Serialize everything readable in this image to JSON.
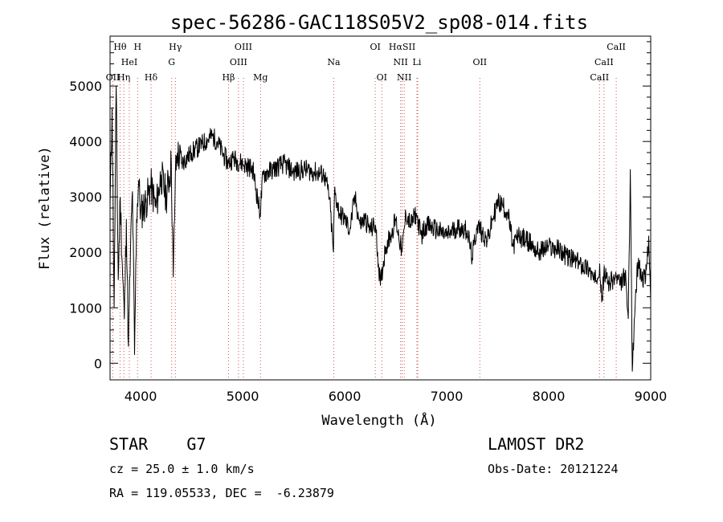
{
  "chart_data": {
    "type": "line",
    "title": "spec-56286-GAC118S05V2_sp08-014.fits",
    "xlabel": "Wavelength (Å)",
    "ylabel": "Flux (relative)",
    "xlim": [
      3700,
      9000
    ],
    "ylim": [
      -300,
      5900
    ],
    "xticks": [
      4000,
      5000,
      6000,
      7000,
      8000,
      9000
    ],
    "yticks": [
      0,
      1000,
      2000,
      3000,
      4000,
      5000
    ],
    "grid": false,
    "series": [
      {
        "x": [
          3700,
          3720,
          3740,
          3760,
          3780,
          3800,
          3820,
          3840,
          3860,
          3880,
          3900,
          3920,
          3940,
          3960,
          3980,
          4000,
          4050,
          4100,
          4150,
          4200,
          4250,
          4300,
          4320,
          4340,
          4360,
          4400,
          4500,
          4600,
          4700,
          4750,
          4800,
          4860,
          4900,
          5000,
          5100,
          5170,
          5200,
          5300,
          5400,
          5500,
          5600,
          5700,
          5800,
          5850,
          5890,
          5900,
          5950,
          6000,
          6050,
          6100,
          6150,
          6200,
          6250,
          6300,
          6350,
          6400,
          6450,
          6500,
          6563,
          6600,
          6650,
          6700,
          6750,
          6800,
          6900,
          7000,
          7100,
          7200,
          7250,
          7300,
          7400,
          7450,
          7500,
          7550,
          7600,
          7650,
          7700,
          7800,
          7900,
          8000,
          8100,
          8200,
          8300,
          8400,
          8450,
          8500,
          8520,
          8540,
          8600,
          8662,
          8700,
          8750,
          8780,
          8800,
          8820,
          8850,
          8880,
          8900,
          8950,
          8980,
          9000
        ],
        "y": [
          2800,
          4600,
          1000,
          5000,
          1500,
          3000,
          1800,
          800,
          2600,
          300,
          2000,
          3100,
          150,
          2600,
          3300,
          2700,
          2900,
          3200,
          2800,
          3400,
          3000,
          3600,
          1550,
          3400,
          3800,
          3600,
          3800,
          3950,
          4100,
          4000,
          3800,
          3600,
          3700,
          3600,
          3500,
          2700,
          3400,
          3500,
          3600,
          3450,
          3500,
          3450,
          3400,
          3000,
          2000,
          3100,
          2700,
          2600,
          2400,
          3000,
          2500,
          2600,
          2400,
          2500,
          1400,
          2100,
          2300,
          2600,
          2000,
          2700,
          2500,
          2700,
          2300,
          2500,
          2400,
          2300,
          2450,
          2400,
          1900,
          2500,
          2200,
          2600,
          2900,
          2850,
          2700,
          2100,
          2300,
          2200,
          2000,
          2100,
          2050,
          1900,
          1800,
          1700,
          1450,
          1800,
          1100,
          1600,
          1450,
          1550,
          1400,
          1600,
          800,
          3500,
          -150,
          1200,
          1900,
          1600,
          1500,
          2300,
          1100
        ]
      }
    ],
    "line_labels": [
      {
        "text": "Hθ",
        "wave": 3798,
        "row": 0,
        "color": "#000000"
      },
      {
        "text": "H",
        "wave": 3970,
        "row": 0,
        "color": "#000000"
      },
      {
        "text": "Hγ",
        "wave": 4340,
        "row": 0,
        "color": "#000000"
      },
      {
        "text": "OIII",
        "wave": 5007,
        "row": 0,
        "color": "#000000"
      },
      {
        "text": "OI",
        "wave": 6300,
        "row": 0,
        "color": "#000000"
      },
      {
        "text": "HαSII",
        "wave": 6563,
        "row": 0,
        "color": "#000000"
      },
      {
        "text": "CaII",
        "wave": 8662,
        "row": 0,
        "color": "#000000"
      },
      {
        "text": "HeI",
        "wave": 3889,
        "row": 1,
        "color": "#000000"
      },
      {
        "text": "G",
        "wave": 4304,
        "row": 1,
        "color": "#000000"
      },
      {
        "text": "OIII",
        "wave": 4959,
        "row": 1,
        "color": "#000000"
      },
      {
        "text": "Na",
        "wave": 5893,
        "row": 1,
        "color": "#000000"
      },
      {
        "text": "NII",
        "wave": 6548,
        "row": 1,
        "color": "#000000"
      },
      {
        "text": "Li",
        "wave": 6708,
        "row": 1,
        "color": "#000000"
      },
      {
        "text": "OII",
        "wave": 7325,
        "row": 1,
        "color": "#000000"
      },
      {
        "text": "CaII",
        "wave": 8542,
        "row": 1,
        "color": "#000000"
      },
      {
        "text": "OII",
        "wave": 3727,
        "row": 2,
        "color": "#000000"
      },
      {
        "text": "Hη",
        "wave": 3835,
        "row": 2,
        "color": "#000000"
      },
      {
        "text": "Hδ",
        "wave": 4102,
        "row": 2,
        "color": "#000000"
      },
      {
        "text": "Hβ",
        "wave": 4861,
        "row": 2,
        "color": "#000000"
      },
      {
        "text": "Mg",
        "wave": 5175,
        "row": 2,
        "color": "#000000"
      },
      {
        "text": "OI",
        "wave": 6364,
        "row": 2,
        "color": "#000000"
      },
      {
        "text": "NII",
        "wave": 6584,
        "row": 2,
        "color": "#000000"
      },
      {
        "text": "CaII",
        "wave": 8498,
        "row": 2,
        "color": "#000000"
      }
    ],
    "markers": [
      3727,
      3798,
      3835,
      3889,
      3970,
      4102,
      4304,
      4340,
      4861,
      4959,
      5007,
      5175,
      5893,
      6300,
      6364,
      6548,
      6563,
      6584,
      6708,
      6716,
      7325,
      8498,
      8542,
      8662
    ],
    "marker_color": "#d05050",
    "line_color": "#000000"
  },
  "info": {
    "class": "STAR    G7",
    "survey": "LAMOST DR2",
    "cz": "cz = 25.0 ± 1.0 km/s",
    "obs_date": "Obs-Date: 20121224",
    "coords": "RA = 119.05533, DEC =  -6.23879"
  }
}
